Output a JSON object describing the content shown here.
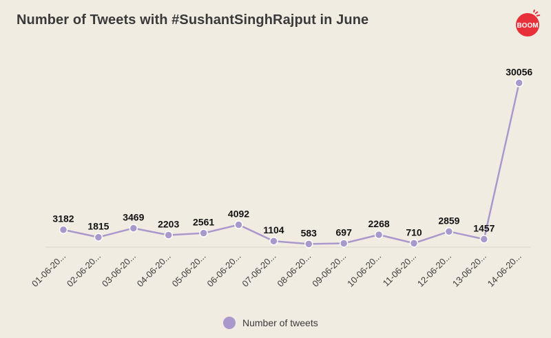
{
  "header": {
    "title": "Number of Tweets with #SushantSinghRajput in June",
    "logo_text": "BOOM"
  },
  "colors": {
    "background": "#f1ece2",
    "series": "#a898cc",
    "logo": "#e8303a",
    "axis": "#d9d3c8"
  },
  "chart_data": {
    "type": "line",
    "title": "Number of Tweets with #SushantSinghRajput in June",
    "xlabel": "",
    "ylabel": "",
    "categories": [
      "01-06-20...",
      "02-06-20...",
      "03-06-20...",
      "04-06-20...",
      "05-06-20...",
      "06-06-20...",
      "07-06-20...",
      "08-06-20...",
      "09-06-20...",
      "10-06-20...",
      "11-06-20...",
      "12-06-20...",
      "13-06-20...",
      "14-06-20..."
    ],
    "series": [
      {
        "name": "Number of tweets",
        "values": [
          3182,
          1815,
          3469,
          2203,
          2561,
          4092,
          1104,
          583,
          697,
          2268,
          710,
          2859,
          1457,
          30056
        ]
      }
    ],
    "ylim": [
      0,
      32000
    ],
    "grid": false,
    "legend": "bottom-center",
    "data_labels": true
  }
}
